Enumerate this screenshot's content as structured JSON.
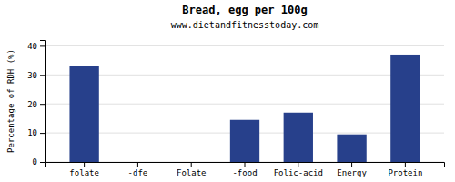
{
  "chart_data": {
    "type": "bar",
    "title": "Bread, egg per 100g",
    "subtitle": "www.dietandfitnesstoday.com",
    "ylabel": "Percentage of RDH (%)",
    "categories": [
      "folate",
      "-dfe",
      "Folate",
      "-food",
      "Folic-acid",
      "Energy",
      "Protein"
    ],
    "values": [
      33,
      0,
      0,
      14.5,
      17,
      9.5,
      37
    ],
    "color": "#27408b",
    "ylim": [
      0,
      42
    ],
    "yticks": [
      0,
      10,
      20,
      30,
      40
    ],
    "grid": true
  }
}
